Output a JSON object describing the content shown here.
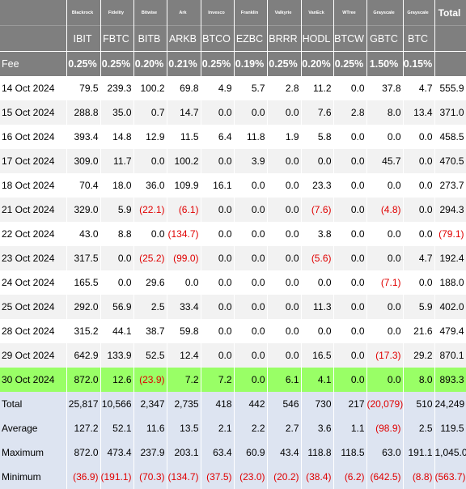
{
  "header": {
    "issuers": [
      "Blackrock",
      "Fidelity",
      "Bitwise",
      "Ark",
      "Invesco",
      "Franklin",
      "Valkyrie",
      "VanEck",
      "WTree",
      "Grayscale",
      "Grayscale"
    ],
    "total_label": "Total",
    "tickers": [
      "IBIT",
      "FBTC",
      "BITB",
      "ARKB",
      "BTCO",
      "EZBC",
      "BRRR",
      "HODL",
      "BTCW",
      "GBTC",
      "BTC"
    ],
    "fee_label": "Fee",
    "fees": [
      "0.25%",
      "0.25%",
      "0.20%",
      "0.21%",
      "0.25%",
      "0.19%",
      "0.25%",
      "0.20%",
      "0.25%",
      "1.50%",
      "0.15%"
    ]
  },
  "rows": [
    {
      "date": "14 Oct 2024",
      "values": [
        "79.5",
        "239.3",
        "100.2",
        "69.8",
        "4.9",
        "5.7",
        "2.8",
        "11.2",
        "0.0",
        "37.8",
        "4.7"
      ],
      "total": "555.9"
    },
    {
      "date": "15 Oct 2024",
      "values": [
        "288.8",
        "35.0",
        "0.7",
        "14.7",
        "0.0",
        "0.0",
        "0.0",
        "7.6",
        "2.8",
        "8.0",
        "13.4"
      ],
      "total": "371.0"
    },
    {
      "date": "16 Oct 2024",
      "values": [
        "393.4",
        "14.8",
        "12.9",
        "11.5",
        "6.4",
        "11.8",
        "1.9",
        "5.8",
        "0.0",
        "0.0",
        "0.0"
      ],
      "total": "458.5"
    },
    {
      "date": "17 Oct 2024",
      "values": [
        "309.0",
        "11.7",
        "0.0",
        "100.2",
        "0.0",
        "3.9",
        "0.0",
        "0.0",
        "0.0",
        "45.7",
        "0.0"
      ],
      "total": "470.5"
    },
    {
      "date": "18 Oct 2024",
      "values": [
        "70.4",
        "18.0",
        "36.0",
        "109.9",
        "16.1",
        "0.0",
        "0.0",
        "23.3",
        "0.0",
        "0.0",
        "0.0"
      ],
      "total": "273.7"
    },
    {
      "date": "21 Oct 2024",
      "values": [
        "329.0",
        "5.9",
        "(22.1)",
        "(6.1)",
        "0.0",
        "0.0",
        "0.0",
        "(7.6)",
        "0.0",
        "(4.8)",
        "0.0"
      ],
      "total": "294.3"
    },
    {
      "date": "22 Oct 2024",
      "values": [
        "43.0",
        "8.8",
        "0.0",
        "(134.7)",
        "0.0",
        "0.0",
        "0.0",
        "3.8",
        "0.0",
        "0.0",
        "0.0"
      ],
      "total": "(79.1)"
    },
    {
      "date": "23 Oct 2024",
      "values": [
        "317.5",
        "0.0",
        "(25.2)",
        "(99.0)",
        "0.0",
        "0.0",
        "0.0",
        "(5.6)",
        "0.0",
        "0.0",
        "4.7"
      ],
      "total": "192.4"
    },
    {
      "date": "24 Oct 2024",
      "values": [
        "165.5",
        "0.0",
        "29.6",
        "0.0",
        "0.0",
        "0.0",
        "0.0",
        "0.0",
        "0.0",
        "(7.1)",
        "0.0"
      ],
      "total": "188.0"
    },
    {
      "date": "25 Oct 2024",
      "values": [
        "292.0",
        "56.9",
        "2.5",
        "33.4",
        "0.0",
        "0.0",
        "0.0",
        "11.3",
        "0.0",
        "0.0",
        "5.9"
      ],
      "total": "402.0"
    },
    {
      "date": "28 Oct 2024",
      "values": [
        "315.2",
        "44.1",
        "38.7",
        "59.8",
        "0.0",
        "0.0",
        "0.0",
        "0.0",
        "0.0",
        "0.0",
        "21.6"
      ],
      "total": "479.4"
    },
    {
      "date": "29 Oct 2024",
      "values": [
        "642.9",
        "133.9",
        "52.5",
        "12.4",
        "0.0",
        "0.0",
        "0.0",
        "16.5",
        "0.0",
        "(17.3)",
        "29.2"
      ],
      "total": "870.1"
    },
    {
      "date": "30 Oct 2024",
      "values": [
        "872.0",
        "12.6",
        "(23.9)",
        "7.2",
        "7.2",
        "0.0",
        "6.1",
        "4.1",
        "0.0",
        "0.0",
        "8.0"
      ],
      "total": "893.3",
      "highlight": true
    }
  ],
  "summary": [
    {
      "label": "Total",
      "values": [
        "25,817",
        "10,566",
        "2,347",
        "2,735",
        "418",
        "442",
        "546",
        "730",
        "217",
        "(20,079)",
        "510"
      ],
      "total": "24,249"
    },
    {
      "label": "Average",
      "values": [
        "127.2",
        "52.1",
        "11.6",
        "13.5",
        "2.1",
        "2.2",
        "2.7",
        "3.6",
        "1.1",
        "(98.9)",
        "2.5"
      ],
      "total": "119.5"
    },
    {
      "label": "Maximum",
      "values": [
        "872.0",
        "473.4",
        "237.9",
        "203.1",
        "63.4",
        "60.9",
        "43.4",
        "118.8",
        "118.5",
        "63.0",
        "191.1"
      ],
      "total": "1,045.0"
    },
    {
      "label": "Minimum",
      "values": [
        "(36.9)",
        "(191.1)",
        "(70.3)",
        "(134.7)",
        "(37.5)",
        "(23.0)",
        "(20.2)",
        "(38.4)",
        "(6.2)",
        "(642.5)",
        "(8.8)"
      ],
      "total": "(563.7)"
    }
  ],
  "colors": {
    "header_bg": "#7f7f7f",
    "highlight_bg": "#99ff66",
    "summary_bg": "#dde4f1",
    "alt_row_bg": "#f2f2f2",
    "negative": "#e00000"
  }
}
